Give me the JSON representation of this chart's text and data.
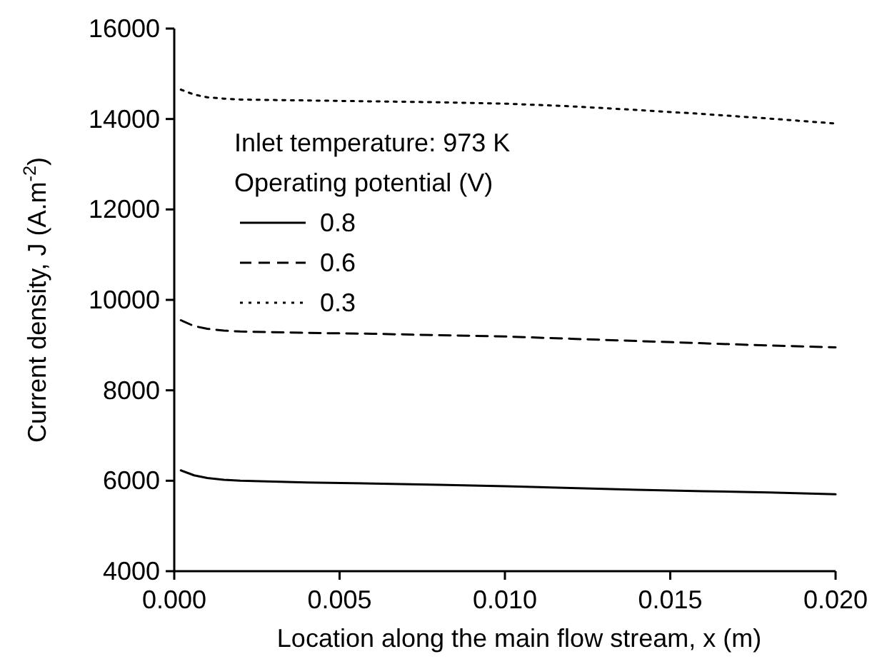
{
  "chart_data": {
    "type": "line",
    "xlabel": "Location along the main flow stream, x (m)",
    "ylabel": "Current density, J (A.m$^{-2}$)",
    "legend_title": "Operating potential (V)",
    "annotations": [
      "Inlet temperature: 973 K"
    ],
    "legend": "top left",
    "xlim": [
      0,
      0.02
    ],
    "ylim": [
      4000,
      16000
    ],
    "xticks": [
      {
        "value": 0,
        "label": "0.000"
      },
      {
        "value": 0.005,
        "label": "0.005"
      },
      {
        "value": 0.01,
        "label": "0.010"
      },
      {
        "value": 0.015,
        "label": "0.015"
      },
      {
        "value": 0.02,
        "label": "0.020"
      }
    ],
    "yticks": [
      4000,
      6000,
      8000,
      10000,
      12000,
      14000,
      16000
    ],
    "grid": false,
    "series": [
      {
        "name": "0.8",
        "color": "#000000",
        "line_style": "solid",
        "x": [
          0.0002,
          0.0006,
          0.001,
          0.0015,
          0.002,
          0.004,
          0.006,
          0.008,
          0.01,
          0.012,
          0.014,
          0.016,
          0.018,
          0.02
        ],
        "values": [
          6230,
          6120,
          6060,
          6020,
          6000,
          5960,
          5940,
          5910,
          5880,
          5840,
          5800,
          5770,
          5740,
          5700
        ]
      },
      {
        "name": "0.6",
        "color": "#000000",
        "line_style": "dashed",
        "x": [
          0.0002,
          0.0006,
          0.001,
          0.0015,
          0.002,
          0.004,
          0.006,
          0.008,
          0.01,
          0.012,
          0.014,
          0.016,
          0.018,
          0.02
        ],
        "values": [
          9550,
          9420,
          9360,
          9320,
          9300,
          9270,
          9250,
          9220,
          9190,
          9140,
          9090,
          9040,
          8990,
          8950
        ]
      },
      {
        "name": "0.3",
        "color": "#000000",
        "line_style": "dotted",
        "x": [
          0.0002,
          0.0006,
          0.001,
          0.0015,
          0.002,
          0.004,
          0.006,
          0.008,
          0.01,
          0.012,
          0.014,
          0.016,
          0.018,
          0.02
        ],
        "values": [
          14650,
          14540,
          14480,
          14450,
          14430,
          14410,
          14390,
          14370,
          14340,
          14280,
          14200,
          14110,
          14010,
          13900
        ]
      }
    ]
  }
}
